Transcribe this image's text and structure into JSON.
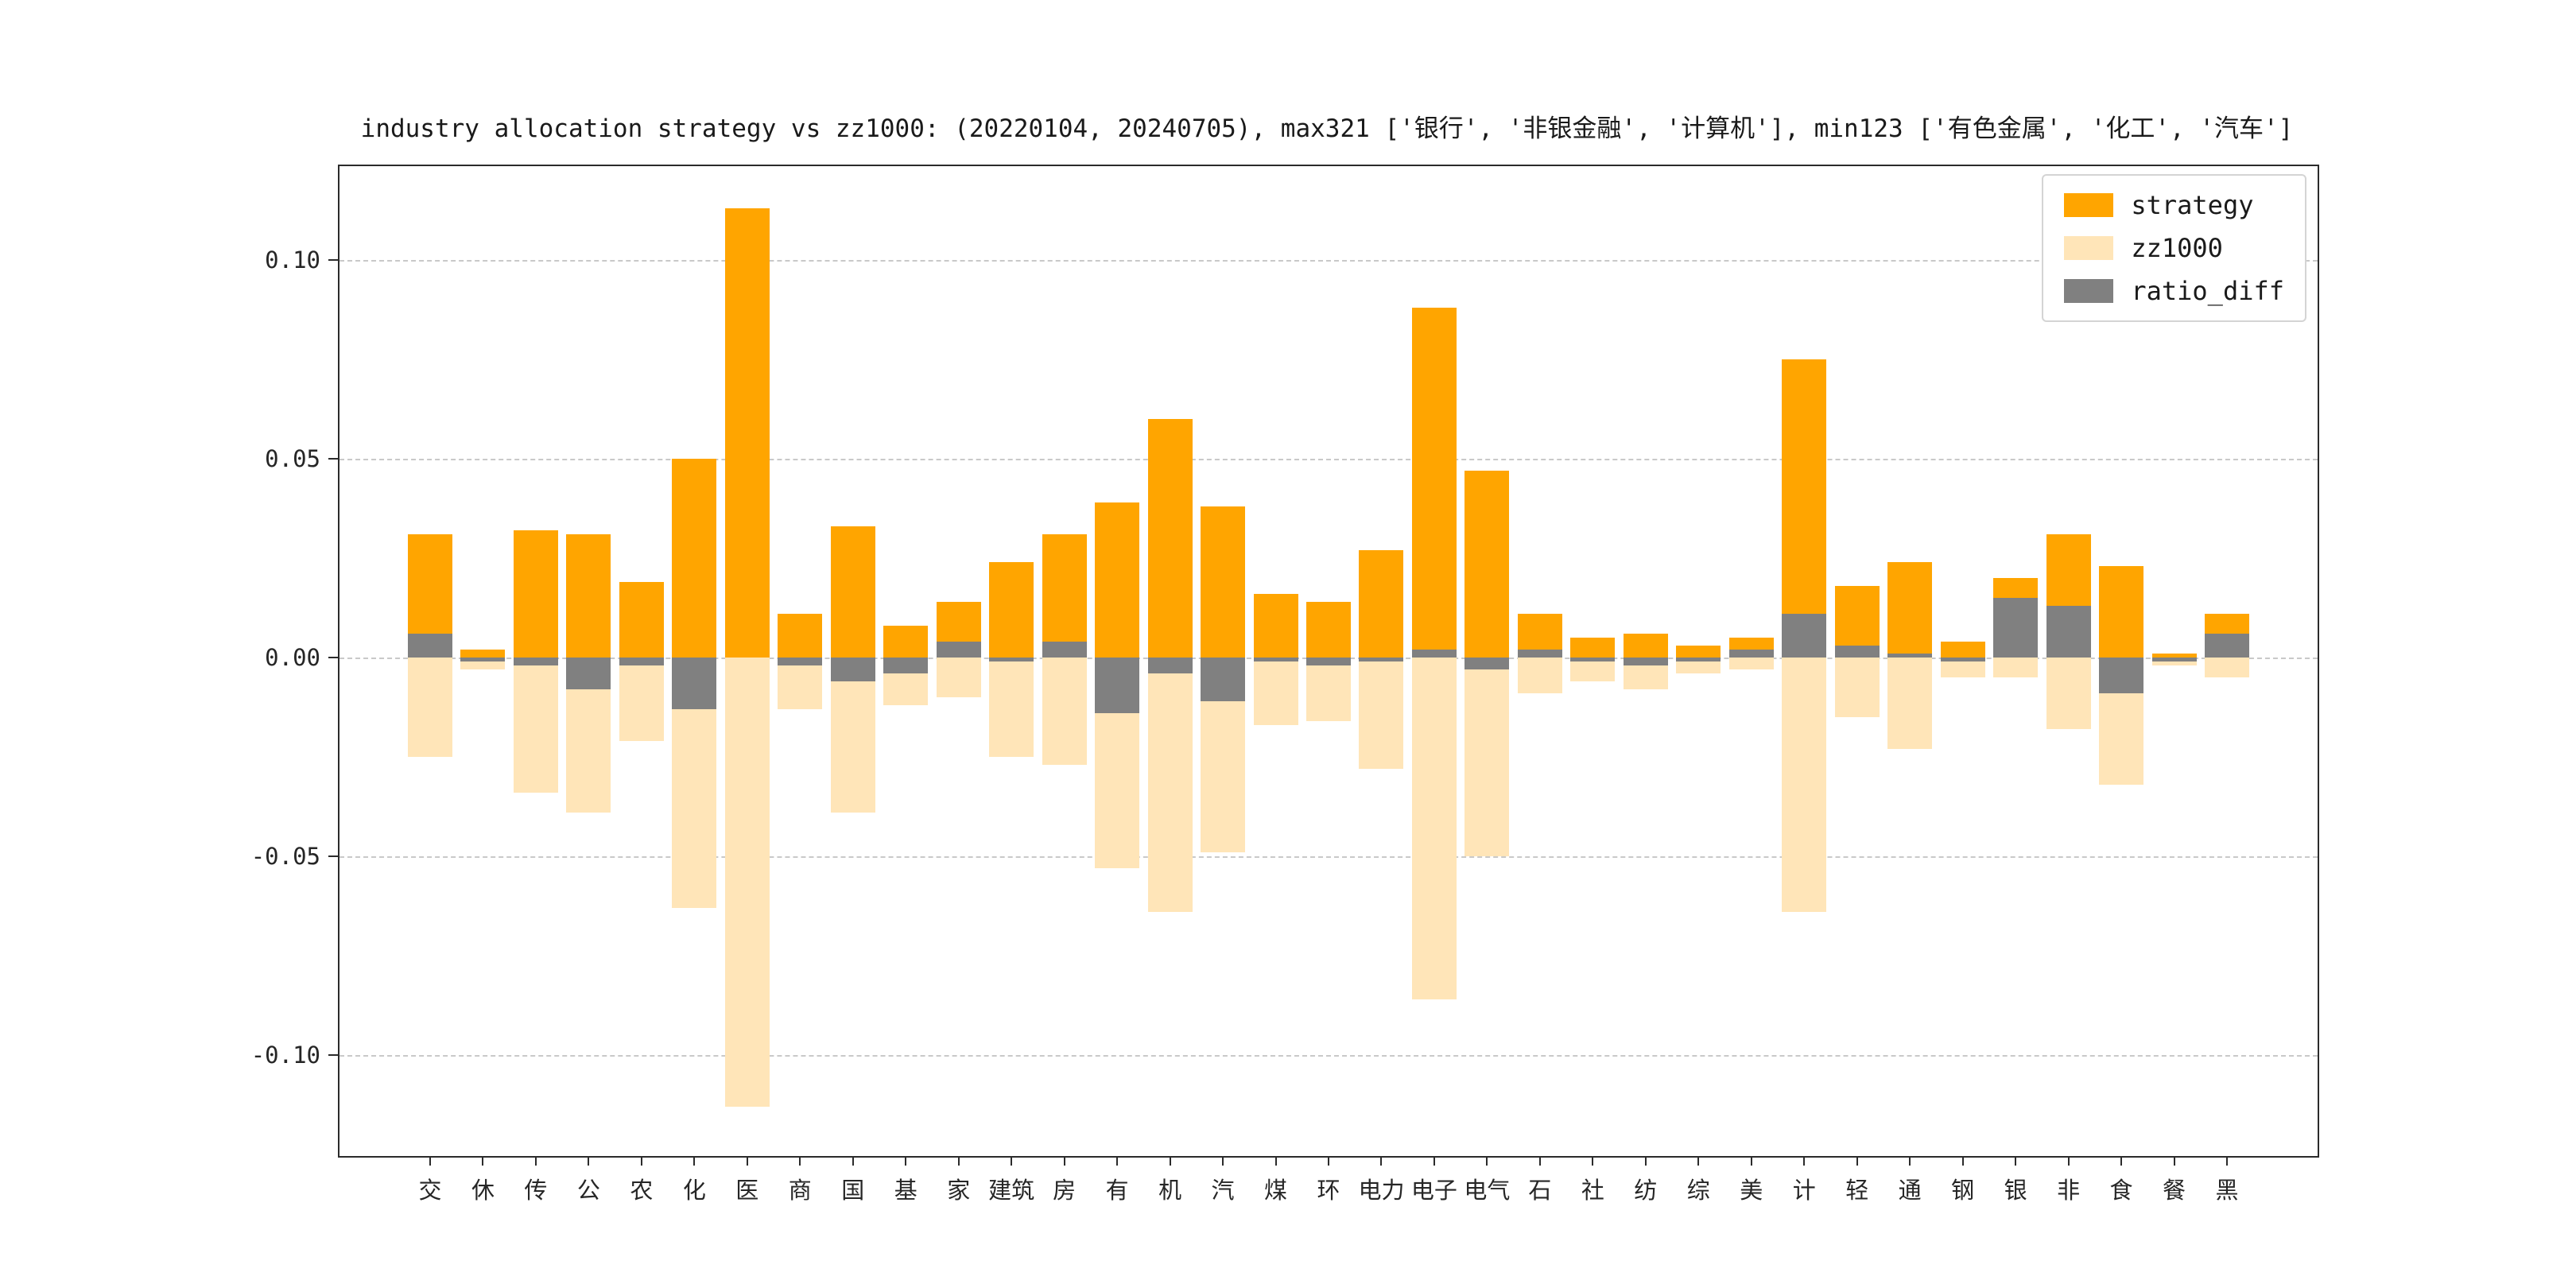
{
  "legend": {
    "items": [
      {
        "label": "strategy",
        "color": "#ffa500"
      },
      {
        "label": "zz1000",
        "color": "#ffe5b8"
      },
      {
        "label": "ratio_diff",
        "color": "#808080"
      }
    ],
    "position": "upper right"
  },
  "axes": {
    "y_ticks": [
      {
        "value": 0.1,
        "label": "0.10"
      },
      {
        "value": 0.05,
        "label": "0.05"
      },
      {
        "value": 0.0,
        "label": "0.00"
      },
      {
        "value": -0.05,
        "label": "-0.05"
      },
      {
        "value": -0.1,
        "label": "-0.10"
      }
    ],
    "grid": "dashed horizontal gridlines"
  },
  "chart_data": {
    "type": "bar",
    "title": "industry allocation strategy vs zz1000: (20220104, 20240705), max321 ['银行', '非银金融', '计算机'], min123 ['有色金属', '化工', '汽车']",
    "categories": [
      "交",
      "休",
      "传",
      "公",
      "农",
      "化",
      "医",
      "商",
      "国",
      "基",
      "家",
      "建筑",
      "房",
      "有",
      "机",
      "汽",
      "煤",
      "环",
      "电力",
      "电子",
      "电气",
      "石",
      "社",
      "纺",
      "综",
      "美",
      "计",
      "轻",
      "通",
      "钢",
      "银",
      "非",
      "食",
      "餐",
      "黑"
    ],
    "series": [
      {
        "name": "strategy",
        "color": "#ffa500",
        "values": [
          0.031,
          0.002,
          0.032,
          0.031,
          0.019,
          0.05,
          0.113,
          0.011,
          0.033,
          0.008,
          0.014,
          0.024,
          0.031,
          0.039,
          0.06,
          0.038,
          0.016,
          0.014,
          0.027,
          0.088,
          0.047,
          0.011,
          0.005,
          0.006,
          0.003,
          0.005,
          0.075,
          0.018,
          0.024,
          0.004,
          0.02,
          0.031,
          0.023,
          0.001,
          0.011
        ]
      },
      {
        "name": "zz1000",
        "color": "#ffe5b8",
        "plotted": "mirrored below zero",
        "values": [
          -0.025,
          -0.003,
          -0.034,
          -0.039,
          -0.021,
          -0.063,
          -0.113,
          -0.013,
          -0.039,
          -0.012,
          -0.01,
          -0.025,
          -0.027,
          -0.053,
          -0.064,
          -0.049,
          -0.017,
          -0.016,
          -0.028,
          -0.086,
          -0.05,
          -0.009,
          -0.006,
          -0.008,
          -0.004,
          -0.003,
          -0.064,
          -0.015,
          -0.023,
          -0.005,
          -0.005,
          -0.018,
          -0.032,
          -0.002,
          -0.005
        ]
      },
      {
        "name": "ratio_diff",
        "color": "#808080",
        "values": [
          0.006,
          -0.001,
          -0.002,
          -0.008,
          -0.002,
          -0.013,
          0.0,
          -0.002,
          -0.006,
          -0.004,
          0.004,
          -0.001,
          0.004,
          -0.014,
          -0.004,
          -0.011,
          -0.001,
          -0.002,
          -0.001,
          0.002,
          -0.003,
          0.002,
          -0.001,
          -0.002,
          -0.001,
          0.002,
          0.011,
          0.003,
          0.001,
          -0.001,
          0.015,
          0.013,
          -0.009,
          -0.001,
          0.006
        ]
      }
    ],
    "ylim": [
      -0.1255,
      0.1235
    ],
    "gridlines": [
      0.1,
      0.05,
      0.0,
      -0.05,
      -0.1
    ],
    "legend_position": "upper right"
  }
}
